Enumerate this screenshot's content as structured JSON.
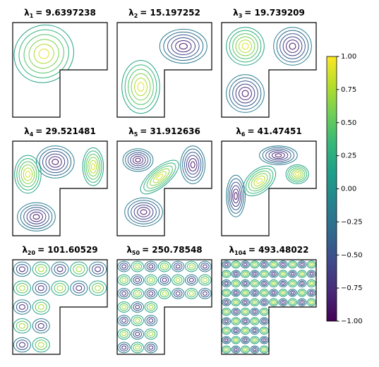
{
  "panels": [
    {
      "symbol": "λ",
      "sub": "1",
      "rest": "= 9.6397238"
    },
    {
      "symbol": "λ",
      "sub": "2",
      "rest": "= 15.197252"
    },
    {
      "symbol": "λ",
      "sub": "3",
      "rest": "= 19.739209"
    },
    {
      "symbol": "λ",
      "sub": "4",
      "rest": "= 29.521481"
    },
    {
      "symbol": "λ",
      "sub": "5",
      "rest": "= 31.912636"
    },
    {
      "symbol": "λ",
      "sub": "6",
      "rest": "= 41.47451"
    },
    {
      "symbol": "λ",
      "sub": "20",
      "rest": "= 101.60529"
    },
    {
      "symbol": "λ",
      "sub": "50",
      "rest": "= 250.78548"
    },
    {
      "symbol": "λ",
      "sub": "104",
      "rest": "= 493.48022"
    }
  ],
  "colorbar": {
    "lim": [
      -1,
      1
    ],
    "ticks": [
      {
        "value": 1,
        "label": "1.00"
      },
      {
        "value": 0.75,
        "label": "0.75"
      },
      {
        "value": 0.5,
        "label": "0.50"
      },
      {
        "value": 0.25,
        "label": "0.25"
      },
      {
        "value": 0,
        "label": "0.00"
      },
      {
        "value": -0.25,
        "label": "−0.25"
      },
      {
        "value": -0.5,
        "label": "−0.50"
      },
      {
        "value": -0.75,
        "label": "−0.75"
      },
      {
        "value": -1,
        "label": "−1.00"
      }
    ]
  }
}
